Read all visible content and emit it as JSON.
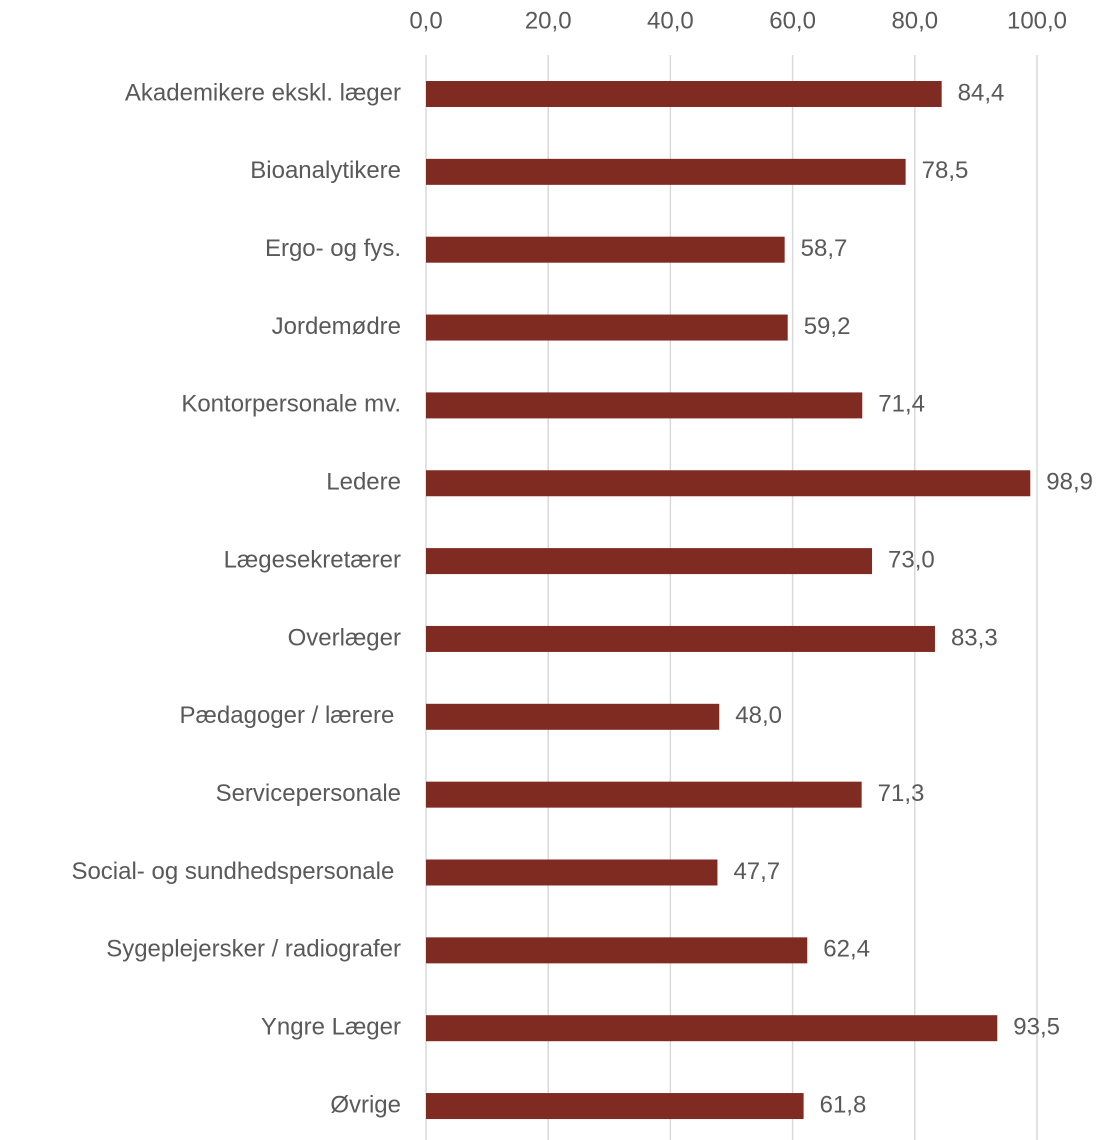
{
  "chart_data": {
    "type": "bar",
    "orientation": "horizontal",
    "categories": [
      "Akademikere ekskl. læger",
      "Bioanalytikere",
      "Ergo- og fys.",
      "Jordemødre",
      "Kontorpersonale mv.",
      "Ledere",
      "Lægesekretærer",
      "Overlæger",
      "Pædagoger / lærere ",
      "Servicepersonale",
      "Social- og sundhedspersonale ",
      "Sygeplejersker / radiografer",
      "Yngre Læger",
      "Øvrige"
    ],
    "values": [
      84.4,
      78.5,
      58.7,
      59.2,
      71.4,
      98.9,
      73.0,
      83.3,
      48.0,
      71.3,
      47.7,
      62.4,
      93.5,
      61.8
    ],
    "value_labels": [
      "84,4",
      "78,5",
      "58,7",
      "59,2",
      "71,4",
      "98,9",
      "73,0",
      "83,3",
      "48,0",
      "71,3",
      "47,7",
      "62,4",
      "93,5",
      "61,8"
    ],
    "color": "#7f2b22",
    "xlim": [
      0,
      100
    ],
    "xticks": [
      {
        "value": 0,
        "label": "0,0"
      },
      {
        "value": 20,
        "label": "20,0"
      },
      {
        "value": 40,
        "label": "40,0"
      },
      {
        "value": 60,
        "label": "60,0"
      },
      {
        "value": 80,
        "label": "80,0"
      },
      {
        "value": 100,
        "label": "100,0"
      }
    ],
    "grid": true
  }
}
